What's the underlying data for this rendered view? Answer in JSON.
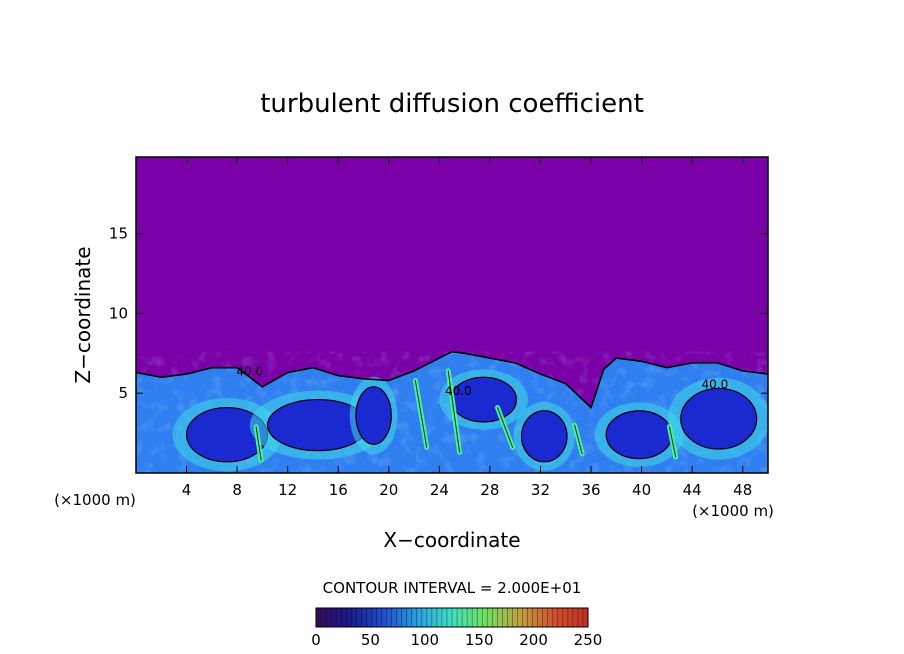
{
  "chart_data": {
    "type": "heatmap",
    "title": "turbulent diffusion coefficient",
    "xlabel": "X−coordinate",
    "ylabel": "Z−coordinate",
    "x_unit_left": "(×1000 m)",
    "x_unit_right": "(×1000 m)",
    "xlim": [
      0,
      50
    ],
    "ylim": [
      0,
      19.8
    ],
    "x_ticks": [
      4,
      8,
      12,
      16,
      20,
      24,
      28,
      32,
      36,
      40,
      44,
      48
    ],
    "y_ticks": [
      5,
      10,
      15
    ],
    "contour_interval_text": "CONTOUR INTERVAL = 2.000E+01",
    "contour_labels": [
      "40.0",
      "40.0",
      "40.0"
    ],
    "colorbar": {
      "min": 0,
      "max": 250,
      "ticks": [
        0,
        50,
        100,
        150,
        200,
        250
      ],
      "colors": [
        "#3a0a5a",
        "#1a1a8a",
        "#1f4fd0",
        "#2aa0e0",
        "#40e0c0",
        "#70e060",
        "#c0a040",
        "#d05030",
        "#c03020"
      ]
    },
    "colors": {
      "background_field": "#7a00a8",
      "low": "#1b2ad0",
      "mid": "#2f7ff0",
      "high": "#40d8e8",
      "peak": "#48f0a0"
    },
    "layer_top_profile": {
      "x": [
        0,
        2,
        4,
        6,
        8,
        10,
        12,
        14,
        16,
        18,
        20,
        22,
        24,
        25,
        26,
        28,
        30,
        32,
        34,
        36,
        37,
        38,
        40,
        42,
        44,
        46,
        48,
        50
      ],
      "z": [
        6.3,
        6.0,
        6.2,
        6.6,
        6.6,
        5.4,
        6.3,
        6.6,
        6.1,
        5.9,
        5.8,
        6.4,
        7.2,
        7.6,
        7.5,
        7.2,
        6.9,
        6.2,
        5.6,
        4.1,
        6.5,
        7.2,
        7.0,
        6.6,
        6.9,
        6.9,
        6.4,
        6.2
      ]
    },
    "vortices": [
      {
        "x": 7.2,
        "z": 2.4,
        "rx": 3.2,
        "rz": 1.7
      },
      {
        "x": 14.4,
        "z": 3.0,
        "rx": 4.0,
        "rz": 1.6
      },
      {
        "x": 18.8,
        "z": 3.6,
        "rx": 1.4,
        "rz": 1.8
      },
      {
        "x": 27.5,
        "z": 4.6,
        "rx": 2.6,
        "rz": 1.4
      },
      {
        "x": 32.3,
        "z": 2.3,
        "rx": 1.8,
        "rz": 1.6
      },
      {
        "x": 39.8,
        "z": 2.4,
        "rx": 2.6,
        "rz": 1.5
      },
      {
        "x": 46.1,
        "z": 3.4,
        "rx": 3.0,
        "rz": 1.9
      }
    ],
    "streaks": [
      {
        "x1": 22.1,
        "z1": 5.8,
        "x2": 23.0,
        "z2": 1.6
      },
      {
        "x1": 24.7,
        "z1": 6.4,
        "x2": 25.6,
        "z2": 1.3
      },
      {
        "x1": 28.6,
        "z1": 4.1,
        "x2": 29.8,
        "z2": 1.6
      },
      {
        "x1": 34.7,
        "z1": 3.0,
        "x2": 35.3,
        "z2": 1.2
      },
      {
        "x1": 9.5,
        "z1": 2.9,
        "x2": 9.9,
        "z2": 0.8
      },
      {
        "x1": 42.2,
        "z1": 2.9,
        "x2": 42.7,
        "z2": 1.0
      }
    ]
  }
}
